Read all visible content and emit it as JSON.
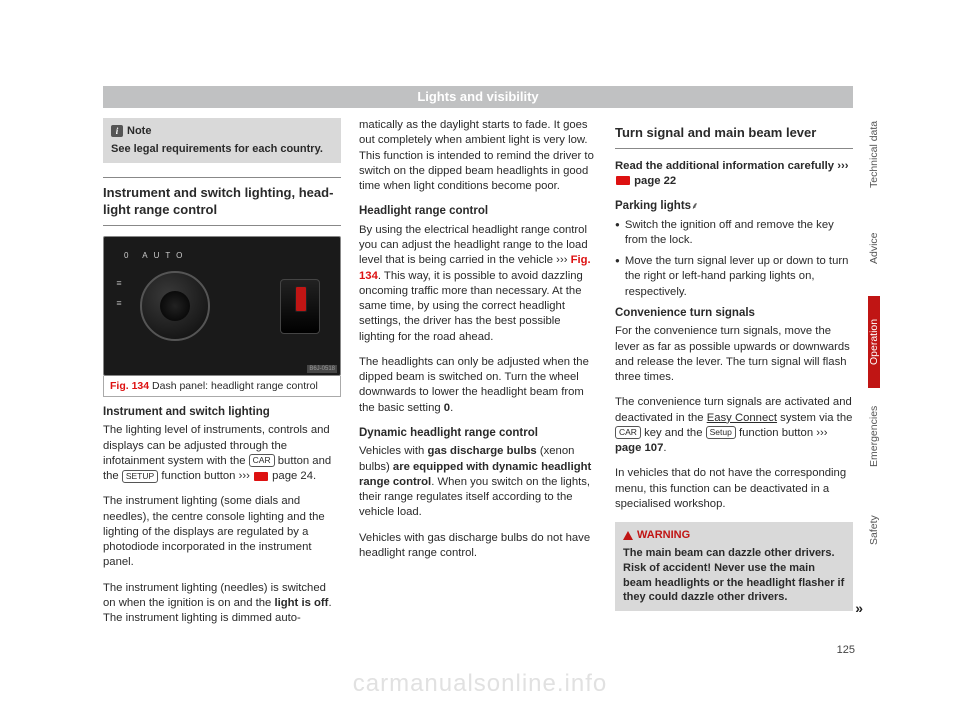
{
  "header": "Lights and visibility",
  "note": {
    "title": "Note",
    "body": "See legal requirements for each country."
  },
  "col1": {
    "section_title": "Instrument and switch lighting, head-light range control",
    "fig": {
      "num": "Fig. 134",
      "caption": "Dash panel: headlight range control",
      "code": "B6J-0518",
      "labels": "0    AUTO"
    },
    "h1": "Instrument and switch lighting",
    "p1a": "The lighting level of instruments, controls and displays can be adjusted through the infotainment system with the ",
    "key_car": "CAR",
    "p1b": " button and the ",
    "key_setup": "SETUP",
    "p1c": " function button ››› ",
    "p1d": " page 24.",
    "p2": "The instrument lighting (some dials and needles), the centre console lighting and the lighting of the displays are regulated by a photodiode incorporated in the instrument panel.",
    "p3a": "The instrument lighting (needles) is switched on when the ignition is on and the ",
    "p3b": "light is off",
    "p3c": ". The instrument lighting is dimmed auto-"
  },
  "col2": {
    "p1": "matically as the daylight starts to fade. It goes out completely when ambient light is very low. This function is intended to remind the driver to switch on the dipped beam headlights in good time when light conditions become poor.",
    "h1": "Headlight range control",
    "p2a": "By using the electrical headlight range control you can adjust the headlight range to the load level that is being carried in the vehicle ››› ",
    "fig_ref": "Fig. 134",
    "p2b": ". This way, it is possible to avoid dazzling oncoming traffic more than necessary. At the same time, by using the correct headlight settings, the driver has the best possible lighting for the road ahead.",
    "p3a": "The headlights can only be adjusted when the dipped beam is switched on. Turn the wheel downwards to lower the headlight beam from the basic setting ",
    "p3b": "0",
    "h2": "Dynamic headlight range control",
    "p4a": "Vehicles with ",
    "p4b": "gas discharge bulbs",
    "p4c": " (xenon bulbs) ",
    "p4d": "are equipped with dynamic headlight range control",
    "p4e": ". When you switch on the lights, their range regulates itself according to the vehicle load.",
    "p5": "Vehicles with gas discharge bulbs do not have headlight range control."
  },
  "col3": {
    "section_title": "Turn signal and main beam lever",
    "p1a": "Read the additional information carefully ››› ",
    "p1b": " page 22",
    "h1": "Parking lights",
    "b1": "Switch the ignition off and remove the key from the lock.",
    "b2": "Move the turn signal lever up or down to turn the right or left-hand parking lights on, respectively.",
    "h2": "Convenience turn signals",
    "p2": "For the convenience turn signals, move the lever as far as possible upwards or downwards and release the lever. The turn signal will flash three times.",
    "p3a": "The convenience turn signals are activated and deactivated in the ",
    "p3b": "Easy Connect",
    "p3c": " system via the ",
    "key_car": "CAR",
    "p3d": " key and the ",
    "key_setup": "Setup",
    "p3e": " function button ››› ",
    "p3f": "page 107",
    "p4": "In vehicles that do not have the corresponding menu, this function can be deactivated in a specialised workshop."
  },
  "warning": {
    "title": "WARNING",
    "body": "The main beam can dazzle other drivers. Risk of accident! Never use the main beam headlights or the headlight flasher if they could dazzle other drivers."
  },
  "tabs": [
    "Technical data",
    "Advice",
    "Operation",
    "Emergencies",
    "Safety"
  ],
  "page_num": "125",
  "continue": "»",
  "watermark": "carmanualsonline.info"
}
